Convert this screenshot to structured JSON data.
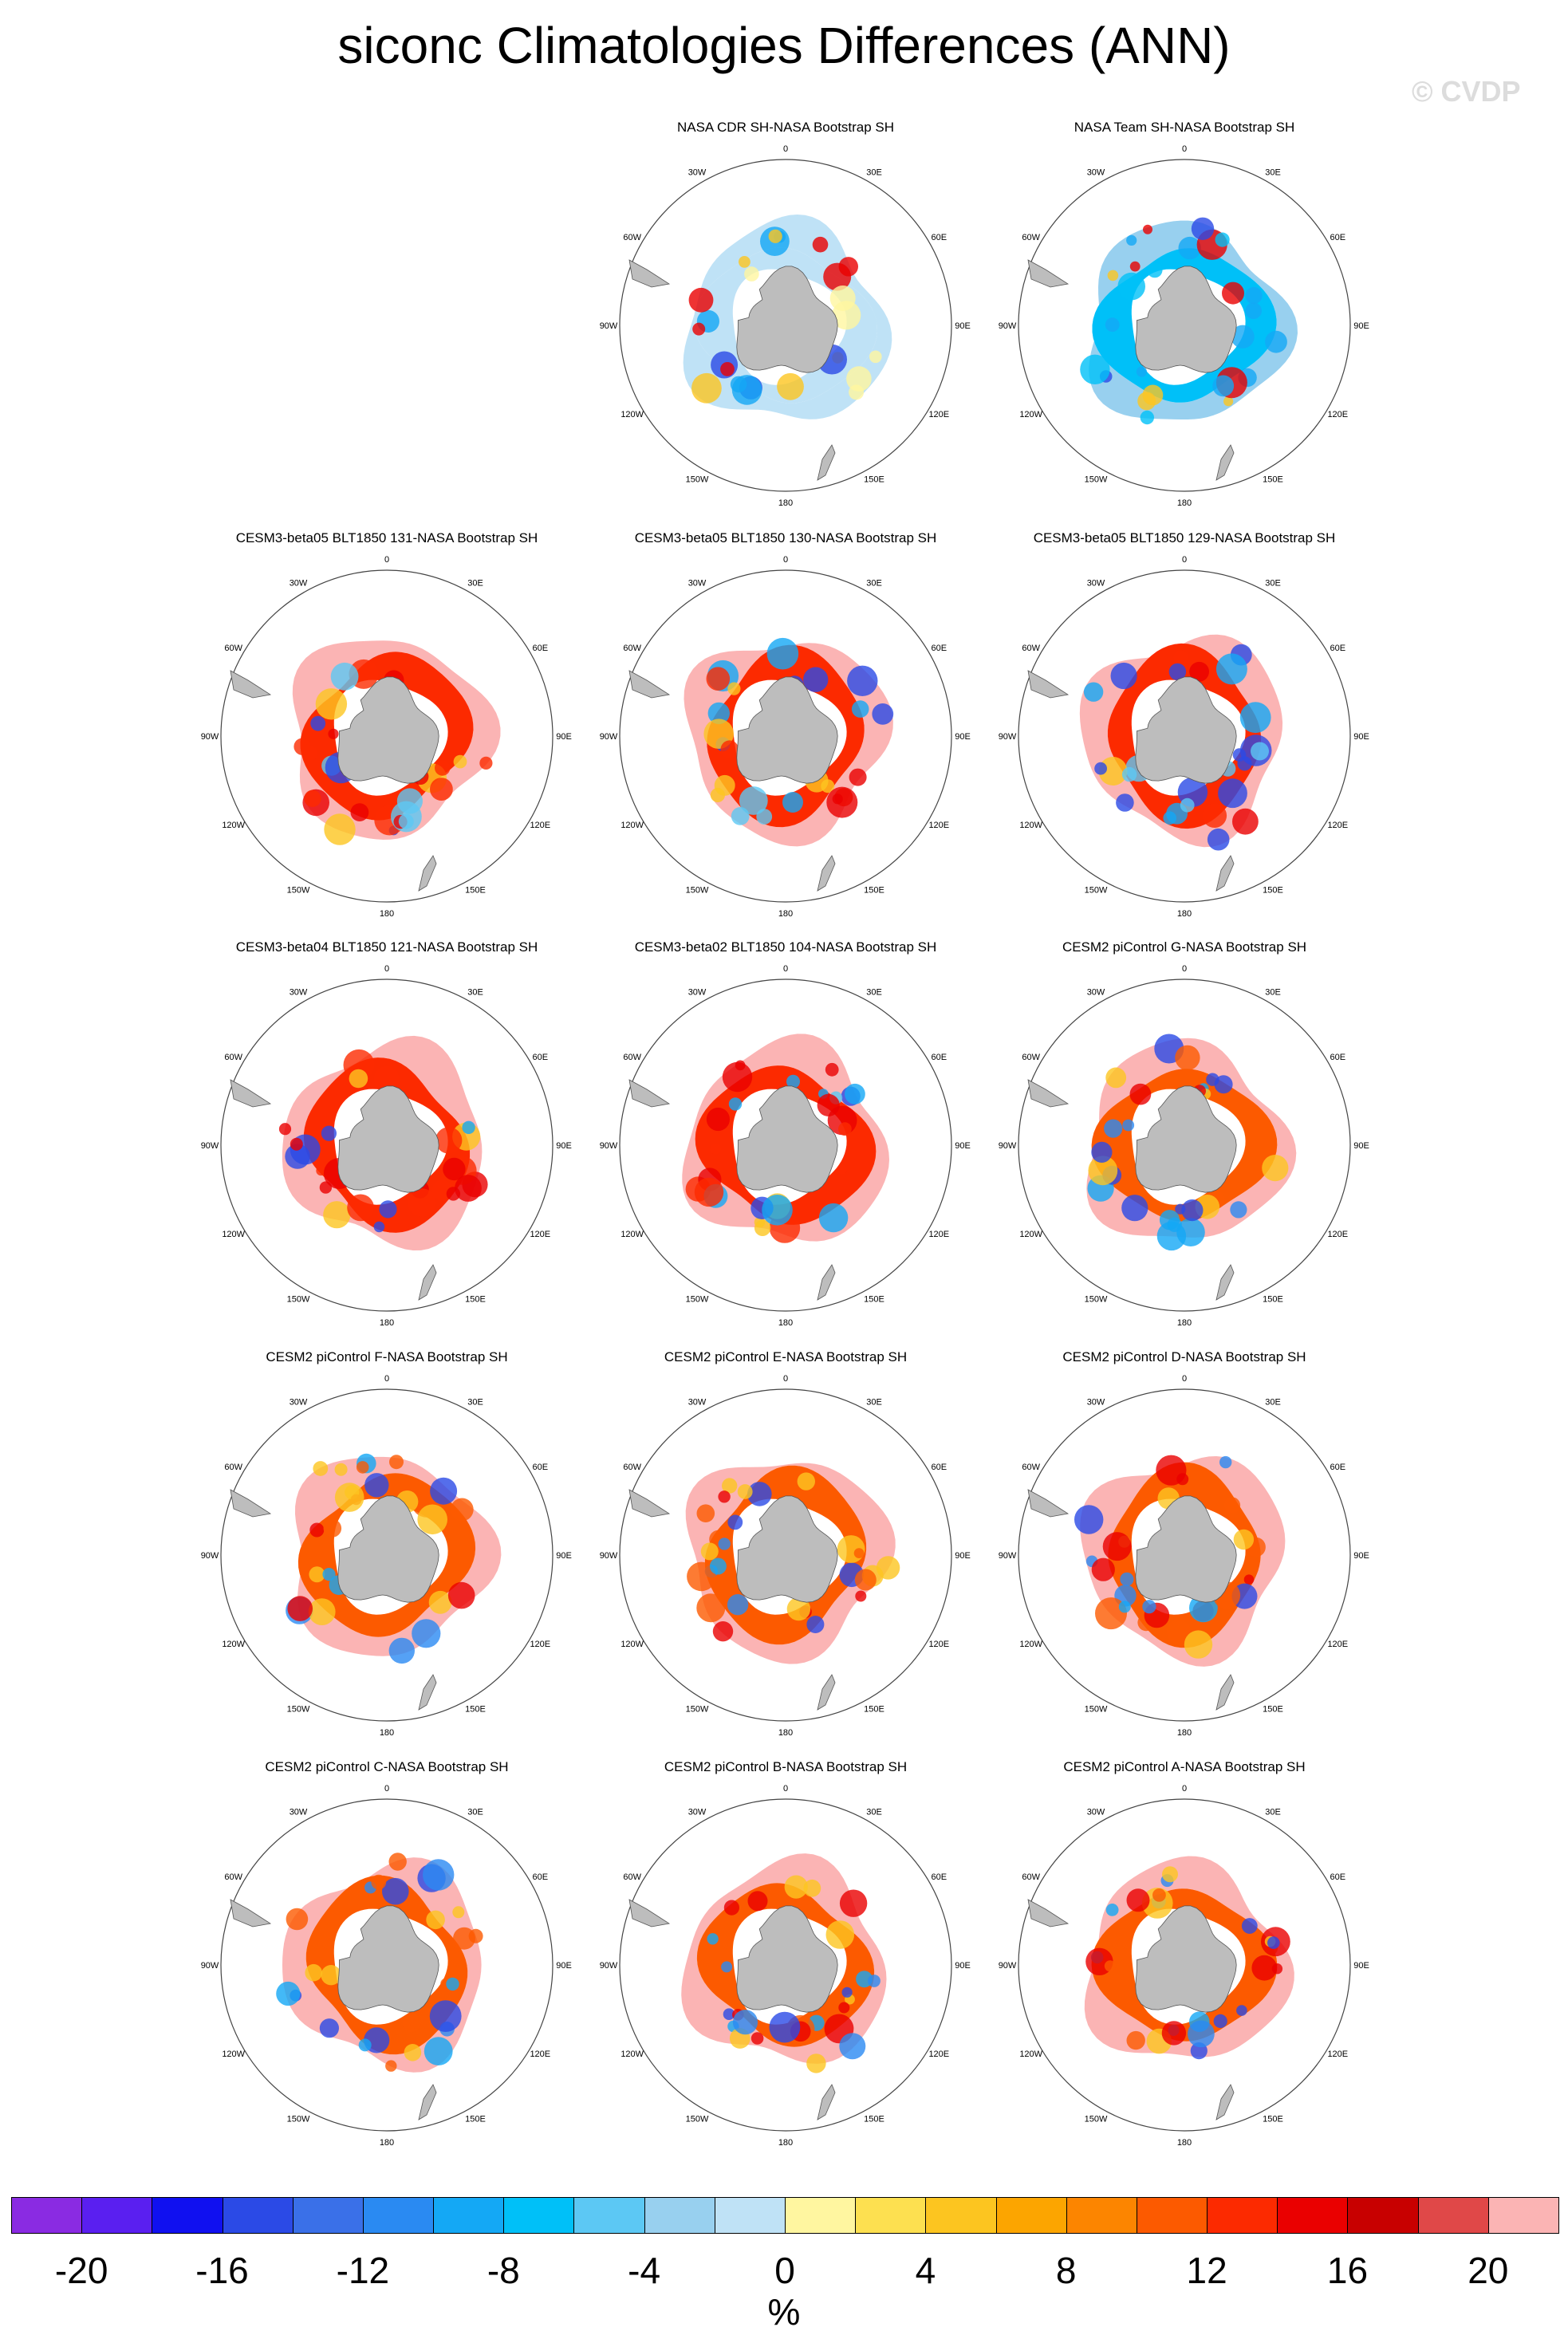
{
  "title": "siconc Climatologies Differences (ANN)",
  "watermark": "© CVDP",
  "lon_labels": [
    "0",
    "30E",
    "60E",
    "90E",
    "120E",
    "150E",
    "180",
    "150W",
    "120W",
    "90W",
    "60W",
    "30W"
  ],
  "chart_data": {
    "type": "heatmap",
    "title": "siconc Climatologies Differences (ANN)",
    "projection": "south-polar-stereographic",
    "colorbar": {
      "unit": "%",
      "tick_labels": [
        "-20",
        "-16",
        "-12",
        "-8",
        "-4",
        "0",
        "4",
        "8",
        "12",
        "16",
        "20"
      ],
      "colors": [
        "#8a2be2",
        "#5a1ff0",
        "#1010f0",
        "#2b4ae6",
        "#3a70e8",
        "#2a8af2",
        "#14a8f5",
        "#00c0f8",
        "#5cc8f4",
        "#98d0ef",
        "#bfe2f6",
        "#fff6a0",
        "#fde050",
        "#fcc520",
        "#fca500",
        "#fc8500",
        "#fc5a00",
        "#fc2a00",
        "#ea0000",
        "#c80000",
        "#e04848",
        "#fbb4b4"
      ]
    },
    "panels": [
      {
        "title": "NASA CDR SH-NASA Bootstrap SH",
        "pattern": "cdr"
      },
      {
        "title": "NASA Team SH-NASA Bootstrap SH",
        "pattern": "team"
      },
      {
        "title": "CESM3-beta05 BLT1850 131-NASA Bootstrap SH",
        "pattern": "beta"
      },
      {
        "title": "CESM3-beta05 BLT1850 130-NASA Bootstrap SH",
        "pattern": "beta"
      },
      {
        "title": "CESM3-beta05 BLT1850 129-NASA Bootstrap SH",
        "pattern": "beta"
      },
      {
        "title": "CESM3-beta04 BLT1850 121-NASA Bootstrap SH",
        "pattern": "beta"
      },
      {
        "title": "CESM3-beta02 BLT1850 104-NASA Bootstrap SH",
        "pattern": "beta"
      },
      {
        "title": "CESM2 piControl G-NASA Bootstrap SH",
        "pattern": "cesm2"
      },
      {
        "title": "CESM2 piControl F-NASA Bootstrap SH",
        "pattern": "cesm2"
      },
      {
        "title": "CESM2 piControl E-NASA Bootstrap SH",
        "pattern": "cesm2"
      },
      {
        "title": "CESM2 piControl D-NASA Bootstrap SH",
        "pattern": "cesm2"
      },
      {
        "title": "CESM2 piControl C-NASA Bootstrap SH",
        "pattern": "cesm2"
      },
      {
        "title": "CESM2 piControl B-NASA Bootstrap SH",
        "pattern": "cesm2"
      },
      {
        "title": "CESM2 piControl A-NASA Bootstrap SH",
        "pattern": "cesm2"
      }
    ]
  }
}
